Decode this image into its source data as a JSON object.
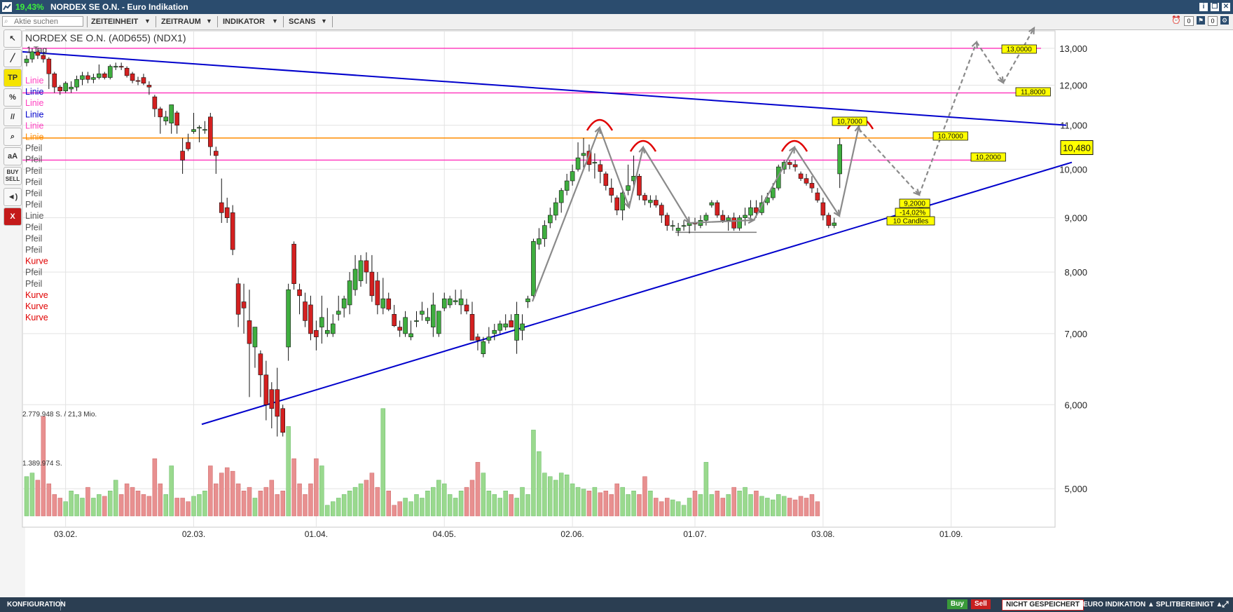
{
  "window": {
    "change_pct": "19,43%",
    "title": "NORDEX SE O.N. - Euro Indikation",
    "btn_info": "i",
    "btn_restore": "❐",
    "btn_close": "✕"
  },
  "menu": {
    "search_placeholder": "Aktie suchen",
    "items": [
      "ZEITEINHEIT",
      "ZEITRAUM",
      "INDIKATOR",
      "SCANS"
    ],
    "badge_count": "0"
  },
  "toolbar": {
    "tools": [
      {
        "name": "cursor-tool",
        "label": "↖"
      },
      {
        "name": "line-tool",
        "label": "╱"
      },
      {
        "name": "tp-tool",
        "label": "TP"
      },
      {
        "name": "percent-tool",
        "label": "%"
      },
      {
        "name": "parallel-tool",
        "label": "//"
      },
      {
        "name": "zoom-tool",
        "label": "⌕"
      },
      {
        "name": "text-tool",
        "label": "aA"
      },
      {
        "name": "buy-sell-tool",
        "label": "BUY SELL"
      },
      {
        "name": "sound-tool",
        "label": "◄)"
      },
      {
        "name": "delete-tool",
        "label": "X"
      }
    ]
  },
  "chart": {
    "title": "NORDEX SE O.N. (A0D655) (NDX1)",
    "interval": "1 Tag",
    "last_price": "10,480",
    "volume_high_label": "2.779.948 S. / 21,3 Mio.",
    "volume_mid_label": "1.389.974 S.",
    "drawings_legend": [
      {
        "label": "Linie",
        "color": "#ff40c0"
      },
      {
        "label": "Linie",
        "color": "#0000cc"
      },
      {
        "label": "Linie",
        "color": "#ff40c0"
      },
      {
        "label": "Linie",
        "color": "#0000cc"
      },
      {
        "label": "Linie",
        "color": "#ff40c0"
      },
      {
        "label": "Linie",
        "color": "#ff8c00"
      },
      {
        "label": "Pfeil",
        "color": "#555555"
      },
      {
        "label": "Pfeil",
        "color": "#555555"
      },
      {
        "label": "Pfeil",
        "color": "#555555"
      },
      {
        "label": "Pfeil",
        "color": "#555555"
      },
      {
        "label": "Pfeil",
        "color": "#555555"
      },
      {
        "label": "Pfeil",
        "color": "#555555"
      },
      {
        "label": "Linie",
        "color": "#555555"
      },
      {
        "label": "Pfeil",
        "color": "#555555"
      },
      {
        "label": "Pfeil",
        "color": "#555555"
      },
      {
        "label": "Pfeil",
        "color": "#555555"
      },
      {
        "label": "Kurve",
        "color": "#e00000"
      },
      {
        "label": "Pfeil",
        "color": "#555555"
      },
      {
        "label": "Pfeil",
        "color": "#555555"
      },
      {
        "label": "Kurve",
        "color": "#e00000"
      },
      {
        "label": "Kurve",
        "color": "#e00000"
      },
      {
        "label": "Kurve",
        "color": "#e00000"
      }
    ],
    "annotations": [
      {
        "text": "10,7000",
        "price": 10.7
      },
      {
        "text": "10,7000",
        "price": 10.7
      },
      {
        "text": "10,2000",
        "price": 10.2
      },
      {
        "text": "13,0000",
        "price": 13.0
      },
      {
        "text": "11,8000",
        "price": 11.8
      },
      {
        "text": "9,2000",
        "price": 9.2
      },
      {
        "text": "-14,02%"
      },
      {
        "text": "10 Candles"
      }
    ],
    "colors": {
      "up": "#3fae3f",
      "down": "#d42020",
      "vol_up": "#9ad98e",
      "vol_down": "#e89090",
      "trend": "#0000cc",
      "hline_pink": "#ff40c0",
      "hline_orange": "#ff8c00",
      "arrow": "#8a8a8a"
    }
  },
  "chart_data": {
    "type": "candlestick",
    "title": "NORDEX SE O.N. (A0D655) (NDX1)",
    "interval": "1 Tag",
    "y_scale": "log",
    "ylim": [
      4.6,
      13.5
    ],
    "y_ticks": [
      "13,000",
      "12,000",
      "11,000",
      "10,000",
      "9,000",
      "8,000",
      "7,000",
      "6,000",
      "5,000"
    ],
    "y_tick_values": [
      13,
      12,
      11,
      10,
      9,
      8,
      7,
      6,
      5
    ],
    "x_ticks": [
      "03.02.",
      "02.03.",
      "01.04.",
      "04.05.",
      "02.06.",
      "01.07.",
      "03.08.",
      "01.09."
    ],
    "candles": [
      [
        12.6,
        12.8,
        12.5,
        12.7
      ],
      [
        12.7,
        13.0,
        12.6,
        12.9
      ],
      [
        12.9,
        13.0,
        12.7,
        12.8
      ],
      [
        12.8,
        12.9,
        12.6,
        12.7
      ],
      [
        12.7,
        12.75,
        11.9,
        12.3
      ],
      [
        12.3,
        12.35,
        11.8,
        11.95
      ],
      [
        11.95,
        12.0,
        11.75,
        11.85
      ],
      [
        11.85,
        12.1,
        11.8,
        12.05
      ],
      [
        11.9,
        12.1,
        11.8,
        11.95
      ],
      [
        11.95,
        12.25,
        11.85,
        12.15
      ],
      [
        12.15,
        12.35,
        12.0,
        12.25
      ],
      [
        12.25,
        12.35,
        12.05,
        12.15
      ],
      [
        12.15,
        12.3,
        12.05,
        12.2
      ],
      [
        12.2,
        12.55,
        12.15,
        12.3
      ],
      [
        12.3,
        12.35,
        12.15,
        12.2
      ],
      [
        12.2,
        12.55,
        12.15,
        12.5
      ],
      [
        12.5,
        12.6,
        12.4,
        12.5
      ],
      [
        12.5,
        12.6,
        12.4,
        12.48
      ],
      [
        12.45,
        12.5,
        12.2,
        12.25
      ],
      [
        12.3,
        12.35,
        12.05,
        12.12
      ],
      [
        12.12,
        12.22,
        12.0,
        12.1
      ],
      [
        12.2,
        12.3,
        12.0,
        12.05
      ],
      [
        12.0,
        12.1,
        11.75,
        11.95
      ],
      [
        11.7,
        11.75,
        11.2,
        11.4
      ],
      [
        11.4,
        11.45,
        10.8,
        11.2
      ],
      [
        11.1,
        11.35,
        11.0,
        11.2
      ],
      [
        11.05,
        11.5,
        10.8,
        11.5
      ],
      [
        11.3,
        11.35,
        10.8,
        11.0
      ],
      [
        10.4,
        10.7,
        9.9,
        10.2
      ],
      [
        10.6,
        10.8,
        10.4,
        10.45
      ],
      [
        10.85,
        11.3,
        10.8,
        10.9
      ],
      [
        10.95,
        11.0,
        10.6,
        10.95
      ],
      [
        10.9,
        11.1,
        10.8,
        10.9
      ],
      [
        11.2,
        11.3,
        10.3,
        10.5
      ],
      [
        10.4,
        10.5,
        9.9,
        10.3
      ],
      [
        9.3,
        9.8,
        8.9,
        9.1
      ],
      [
        9.2,
        9.4,
        8.9,
        9.0
      ],
      [
        9.1,
        9.25,
        8.3,
        8.4
      ],
      [
        7.8,
        7.9,
        7.1,
        7.3
      ],
      [
        7.5,
        7.8,
        7.0,
        7.4
      ],
      [
        7.2,
        7.7,
        6.1,
        6.85
      ],
      [
        6.8,
        7.1,
        6.5,
        7.1
      ],
      [
        6.7,
        6.75,
        6.1,
        6.4
      ],
      [
        6.4,
        6.6,
        5.8,
        6.0
      ],
      [
        6.2,
        6.3,
        5.7,
        5.95
      ],
      [
        6.2,
        6.5,
        5.6,
        5.85
      ],
      [
        5.95,
        6.0,
        5.6,
        5.65
      ],
      [
        6.8,
        7.8,
        6.6,
        7.7
      ],
      [
        8.5,
        8.55,
        7.7,
        7.8
      ],
      [
        7.7,
        7.8,
        7.3,
        7.6
      ],
      [
        7.5,
        7.65,
        7.1,
        7.2
      ],
      [
        7.45,
        7.6,
        6.9,
        7.0
      ],
      [
        7.05,
        7.2,
        6.75,
        6.95
      ],
      [
        7.1,
        7.6,
        6.85,
        7.25
      ],
      [
        7.0,
        7.4,
        6.95,
        7.05
      ],
      [
        7.0,
        7.3,
        6.95,
        7.15
      ],
      [
        7.3,
        7.6,
        7.2,
        7.35
      ],
      [
        7.4,
        7.6,
        7.25,
        7.55
      ],
      [
        7.45,
        8.0,
        7.3,
        7.85
      ],
      [
        7.7,
        8.3,
        7.6,
        8.05
      ],
      [
        7.85,
        8.3,
        7.75,
        8.2
      ],
      [
        8.2,
        8.35,
        7.8,
        8.0
      ],
      [
        8.0,
        8.3,
        7.5,
        7.6
      ],
      [
        7.85,
        8.0,
        7.3,
        7.45
      ],
      [
        7.4,
        7.9,
        7.3,
        7.55
      ],
      [
        7.55,
        7.65,
        7.35,
        7.38
      ],
      [
        7.3,
        7.45,
        7.1,
        7.12
      ],
      [
        7.1,
        7.2,
        6.95,
        7.05
      ],
      [
        7.0,
        7.35,
        6.95,
        7.25
      ],
      [
        6.95,
        7.2,
        6.9,
        7.0
      ],
      [
        7.2,
        7.35,
        7.1,
        7.2
      ],
      [
        7.3,
        7.5,
        7.2,
        7.35
      ],
      [
        7.2,
        7.4,
        7.15,
        7.25
      ],
      [
        7.1,
        7.65,
        6.95,
        7.45
      ],
      [
        7.0,
        7.3,
        6.95,
        7.35
      ],
      [
        7.4,
        7.65,
        7.35,
        7.55
      ],
      [
        7.45,
        7.6,
        7.4,
        7.55
      ],
      [
        7.5,
        7.7,
        7.45,
        7.52
      ],
      [
        7.45,
        7.7,
        7.3,
        7.55
      ],
      [
        7.45,
        7.55,
        7.3,
        7.35
      ],
      [
        7.3,
        7.5,
        6.95,
        6.9
      ],
      [
        6.95,
        7.0,
        6.75,
        6.9
      ],
      [
        6.7,
        6.95,
        6.65,
        6.88
      ],
      [
        6.9,
        7.1,
        6.85,
        6.95
      ],
      [
        7.0,
        7.15,
        6.9,
        7.05
      ],
      [
        7.05,
        7.2,
        7.0,
        7.15
      ],
      [
        7.1,
        7.3,
        7.05,
        7.15
      ],
      [
        7.2,
        7.3,
        7.1,
        7.1
      ],
      [
        6.9,
        7.5,
        6.7,
        7.3
      ],
      [
        7.05,
        7.3,
        6.9,
        7.15
      ],
      [
        7.5,
        7.6,
        7.4,
        7.55
      ],
      [
        7.6,
        8.6,
        7.55,
        8.55
      ],
      [
        8.5,
        8.8,
        8.4,
        8.6
      ],
      [
        8.6,
        8.95,
        8.45,
        8.85
      ],
      [
        8.9,
        9.2,
        8.8,
        9.05
      ],
      [
        9.05,
        9.4,
        8.95,
        9.3
      ],
      [
        9.3,
        9.6,
        9.1,
        9.55
      ],
      [
        9.55,
        9.9,
        9.45,
        9.75
      ],
      [
        9.75,
        10.1,
        9.65,
        9.95
      ],
      [
        10.0,
        10.6,
        9.95,
        10.25
      ],
      [
        10.3,
        10.7,
        10.0,
        10.35
      ],
      [
        10.4,
        10.55,
        9.95,
        10.1
      ],
      [
        10.15,
        10.35,
        9.8,
        10.15
      ],
      [
        10.1,
        10.2,
        9.7,
        9.95
      ],
      [
        9.9,
        9.95,
        9.55,
        9.65
      ],
      [
        9.6,
        9.8,
        9.3,
        9.45
      ],
      [
        9.4,
        9.45,
        9.05,
        9.15
      ],
      [
        9.15,
        9.55,
        8.95,
        9.5
      ],
      [
        9.55,
        10.1,
        9.45,
        9.65
      ],
      [
        9.75,
        10.3,
        9.55,
        9.85
      ],
      [
        9.85,
        9.9,
        9.35,
        9.45
      ],
      [
        9.45,
        9.5,
        9.25,
        9.35
      ],
      [
        9.3,
        9.45,
        9.2,
        9.35
      ],
      [
        9.35,
        9.45,
        9.2,
        9.25
      ],
      [
        9.25,
        9.3,
        8.9,
        9.05
      ],
      [
        9.05,
        9.1,
        8.75,
        8.85
      ],
      [
        8.85,
        8.95,
        8.75,
        8.85
      ],
      [
        8.75,
        8.9,
        8.65,
        8.8
      ],
      [
        8.85,
        8.95,
        8.75,
        8.85
      ],
      [
        8.85,
        9.0,
        8.7,
        8.9
      ],
      [
        8.9,
        9.0,
        8.75,
        8.88
      ],
      [
        8.85,
        9.05,
        8.8,
        8.95
      ],
      [
        8.95,
        9.1,
        8.85,
        9.05
      ],
      [
        9.25,
        9.35,
        9.2,
        9.3
      ],
      [
        9.3,
        9.35,
        9.0,
        9.05
      ],
      [
        9.05,
        9.15,
        8.9,
        8.95
      ],
      [
        8.95,
        9.05,
        8.75,
        9.0
      ],
      [
        9.0,
        9.1,
        8.75,
        8.8
      ],
      [
        8.8,
        9.05,
        8.75,
        9.0
      ],
      [
        9.0,
        9.2,
        8.85,
        9.05
      ],
      [
        9.05,
        9.35,
        9.0,
        9.2
      ],
      [
        9.2,
        9.35,
        9.0,
        9.1
      ],
      [
        9.1,
        9.45,
        9.05,
        9.3
      ],
      [
        9.3,
        9.5,
        9.25,
        9.4
      ],
      [
        9.4,
        9.7,
        9.35,
        9.6
      ],
      [
        9.6,
        10.1,
        9.55,
        10.05
      ],
      [
        10.0,
        10.2,
        9.9,
        10.15
      ],
      [
        10.15,
        10.2,
        10.0,
        10.1
      ],
      [
        10.1,
        10.2,
        9.95,
        10.05
      ],
      [
        9.9,
        9.95,
        9.75,
        9.8
      ],
      [
        9.8,
        9.9,
        9.65,
        9.7
      ],
      [
        9.7,
        9.85,
        9.5,
        9.6
      ],
      [
        9.5,
        9.6,
        9.3,
        9.35
      ],
      [
        9.3,
        9.4,
        8.95,
        9.05
      ],
      [
        9.05,
        9.1,
        8.8,
        8.85
      ],
      [
        8.85,
        9.0,
        8.8,
        8.9
      ],
      [
        9.9,
        10.7,
        9.6,
        10.55
      ]
    ],
    "volumes": [
      1.1,
      1.2,
      1.0,
      2.78,
      0.9,
      0.6,
      0.5,
      0.4,
      0.7,
      0.6,
      0.5,
      0.8,
      0.5,
      0.6,
      0.55,
      0.7,
      1.0,
      0.6,
      0.9,
      0.8,
      0.7,
      0.6,
      0.55,
      1.6,
      0.9,
      0.6,
      1.4,
      0.5,
      0.5,
      0.4,
      0.55,
      0.6,
      0.7,
      1.4,
      0.9,
      1.2,
      1.35,
      1.25,
      0.9,
      0.7,
      0.8,
      0.5,
      0.7,
      0.8,
      1.0,
      0.6,
      0.7,
      2.5,
      1.6,
      0.9,
      0.6,
      0.9,
      1.6,
      1.4,
      0.3,
      0.4,
      0.5,
      0.6,
      0.7,
      0.8,
      0.9,
      1.0,
      1.2,
      0.8,
      3.0,
      0.7,
      0.3,
      0.4,
      0.5,
      0.4,
      0.6,
      0.5,
      0.7,
      0.8,
      1.0,
      0.9,
      0.6,
      0.5,
      0.7,
      0.8,
      1.0,
      1.5,
      1.2,
      0.7,
      0.6,
      0.5,
      0.7,
      0.6,
      0.5,
      0.8,
      0.6,
      2.4,
      1.8,
      1.2,
      1.1,
      1.0,
      1.2,
      1.15,
      0.9,
      0.8,
      0.75,
      0.7,
      0.8,
      0.65,
      0.7,
      0.6,
      0.9,
      0.8,
      0.6,
      0.7,
      0.6,
      1.1,
      0.7,
      0.5,
      0.4,
      0.5,
      0.45,
      0.4,
      0.3,
      0.5,
      0.7,
      0.6,
      1.5,
      0.6,
      0.7,
      0.5,
      0.6,
      0.8,
      0.7,
      0.8,
      0.6,
      0.7,
      0.55,
      0.5,
      0.45,
      0.6,
      0.55,
      0.5,
      0.45,
      0.55,
      0.5,
      0.6,
      0.4
    ]
  }
}
